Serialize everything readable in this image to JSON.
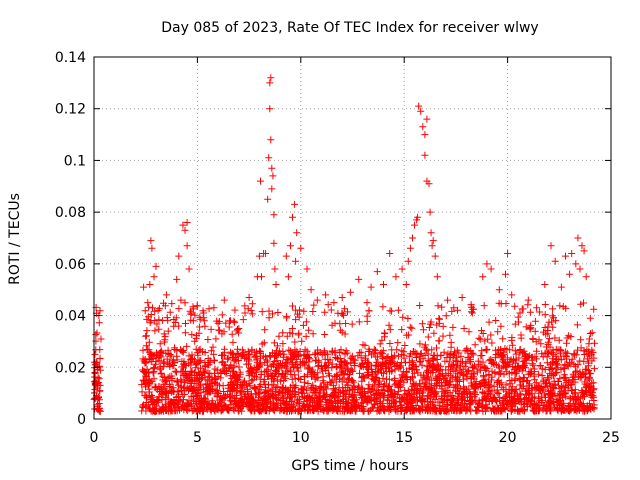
{
  "chart_data": {
    "type": "scatter",
    "title": "Day 085 of 2023, Rate Of TEC Index for receiver wlwy",
    "xlabel": "GPS time / hours",
    "ylabel": "ROTI / TECUs",
    "xlim": [
      0,
      25
    ],
    "ylim": [
      0,
      0.14
    ],
    "x_ticks": [
      0,
      5,
      10,
      15,
      20,
      25
    ],
    "x_tick_labels": [
      "0",
      "5",
      "10",
      "15",
      "20",
      "25"
    ],
    "y_ticks": [
      0,
      0.02,
      0.04,
      0.06,
      0.08,
      0.1,
      0.12,
      0.14
    ],
    "y_tick_labels": [
      "0",
      "0.02",
      "0.04",
      "0.06",
      "0.08",
      "0.1",
      "0.12",
      "0.14"
    ],
    "grid": true,
    "marker": "+",
    "color": "#ff0000",
    "series": [
      {
        "name": "ROTI",
        "points": [
          [
            0.05,
            0.025
          ],
          [
            0.05,
            0.018
          ],
          [
            0.1,
            0.014
          ],
          [
            0.12,
            0.009
          ],
          [
            0.15,
            0.012
          ],
          [
            0.2,
            0.016
          ],
          [
            0.25,
            0.006
          ],
          [
            0.28,
            0.011
          ],
          [
            0.1,
            0.022
          ],
          [
            0.2,
            0.004
          ],
          [
            0.3,
            0.013
          ],
          [
            0.08,
            0.008
          ],
          [
            2.4,
            0.051
          ],
          [
            2.5,
            0.032
          ],
          [
            2.6,
            0.045
          ],
          [
            2.7,
            0.052
          ],
          [
            2.75,
            0.069
          ],
          [
            2.8,
            0.066
          ],
          [
            2.9,
            0.055
          ],
          [
            3.0,
            0.059
          ],
          [
            3.1,
            0.042
          ],
          [
            3.5,
            0.048
          ],
          [
            4.0,
            0.054
          ],
          [
            4.1,
            0.063
          ],
          [
            4.2,
            0.046
          ],
          [
            4.3,
            0.075
          ],
          [
            4.4,
            0.073
          ],
          [
            4.5,
            0.076
          ],
          [
            4.5,
            0.067
          ],
          [
            4.6,
            0.058
          ],
          [
            4.8,
            0.038
          ],
          [
            5.3,
            0.041
          ],
          [
            5.8,
            0.043
          ],
          [
            6.0,
            0.037
          ],
          [
            6.3,
            0.046
          ],
          [
            6.6,
            0.038
          ],
          [
            7.0,
            0.035
          ],
          [
            7.3,
            0.041
          ],
          [
            7.5,
            0.047
          ],
          [
            7.6,
            0.042
          ],
          [
            7.9,
            0.055
          ],
          [
            8.0,
            0.063
          ],
          [
            8.05,
            0.092
          ],
          [
            8.1,
            0.055
          ],
          [
            8.2,
            0.064
          ],
          [
            8.3,
            0.064
          ],
          [
            8.4,
            0.085
          ],
          [
            8.45,
            0.101
          ],
          [
            8.5,
            0.12
          ],
          [
            8.5,
            0.13
          ],
          [
            8.55,
            0.132
          ],
          [
            8.55,
            0.108
          ],
          [
            8.6,
            0.097
          ],
          [
            8.6,
            0.089
          ],
          [
            8.65,
            0.094
          ],
          [
            8.7,
            0.079
          ],
          [
            8.7,
            0.068
          ],
          [
            8.75,
            0.058
          ],
          [
            8.8,
            0.052
          ],
          [
            9.3,
            0.063
          ],
          [
            9.4,
            0.055
          ],
          [
            9.5,
            0.067
          ],
          [
            9.6,
            0.078
          ],
          [
            9.7,
            0.083
          ],
          [
            9.75,
            0.061
          ],
          [
            9.8,
            0.072
          ],
          [
            10.0,
            0.066
          ],
          [
            10.3,
            0.058
          ],
          [
            10.5,
            0.05
          ],
          [
            10.8,
            0.046
          ],
          [
            11.2,
            0.048
          ],
          [
            11.6,
            0.045
          ],
          [
            12.0,
            0.047
          ],
          [
            12.4,
            0.049
          ],
          [
            12.8,
            0.054
          ],
          [
            13.2,
            0.045
          ],
          [
            13.4,
            0.051
          ],
          [
            13.7,
            0.057
          ],
          [
            14.0,
            0.052
          ],
          [
            14.3,
            0.064
          ],
          [
            14.6,
            0.055
          ],
          [
            14.9,
            0.058
          ],
          [
            15.1,
            0.052
          ],
          [
            15.2,
            0.061
          ],
          [
            15.3,
            0.066
          ],
          [
            15.4,
            0.07
          ],
          [
            15.5,
            0.075
          ],
          [
            15.6,
            0.077
          ],
          [
            15.65,
            0.078
          ],
          [
            15.7,
            0.121
          ],
          [
            15.8,
            0.119
          ],
          [
            15.9,
            0.113
          ],
          [
            16.0,
            0.102
          ],
          [
            16.0,
            0.11
          ],
          [
            16.1,
            0.116
          ],
          [
            16.1,
            0.092
          ],
          [
            16.2,
            0.091
          ],
          [
            16.25,
            0.08
          ],
          [
            16.3,
            0.072
          ],
          [
            16.35,
            0.067
          ],
          [
            16.4,
            0.069
          ],
          [
            16.5,
            0.063
          ],
          [
            16.6,
            0.055
          ],
          [
            17.1,
            0.046
          ],
          [
            17.4,
            0.043
          ],
          [
            17.8,
            0.047
          ],
          [
            18.3,
            0.041
          ],
          [
            18.8,
            0.055
          ],
          [
            19.0,
            0.06
          ],
          [
            19.2,
            0.058
          ],
          [
            19.6,
            0.05
          ],
          [
            19.9,
            0.056
          ],
          [
            20.0,
            0.064
          ],
          [
            20.2,
            0.048
          ],
          [
            20.6,
            0.041
          ],
          [
            21.0,
            0.046
          ],
          [
            21.4,
            0.043
          ],
          [
            21.8,
            0.052
          ],
          [
            22.1,
            0.067
          ],
          [
            22.3,
            0.061
          ],
          [
            22.6,
            0.051
          ],
          [
            22.8,
            0.063
          ],
          [
            23.0,
            0.056
          ],
          [
            23.1,
            0.064
          ],
          [
            23.3,
            0.06
          ],
          [
            23.4,
            0.07
          ],
          [
            23.5,
            0.058
          ],
          [
            23.6,
            0.067
          ],
          [
            23.7,
            0.065
          ],
          [
            23.8,
            0.055
          ],
          [
            24.0,
            0.039
          ]
        ],
        "dense_band": {
          "segments": [
            [
              0.0,
              0.35
            ],
            [
              2.3,
              24.2
            ]
          ],
          "y_min": 0.003,
          "y_typical_max": 0.035,
          "note": "continuous dense cloud of values between about 0.003 and 0.035 across these time ranges"
        }
      }
    ]
  }
}
